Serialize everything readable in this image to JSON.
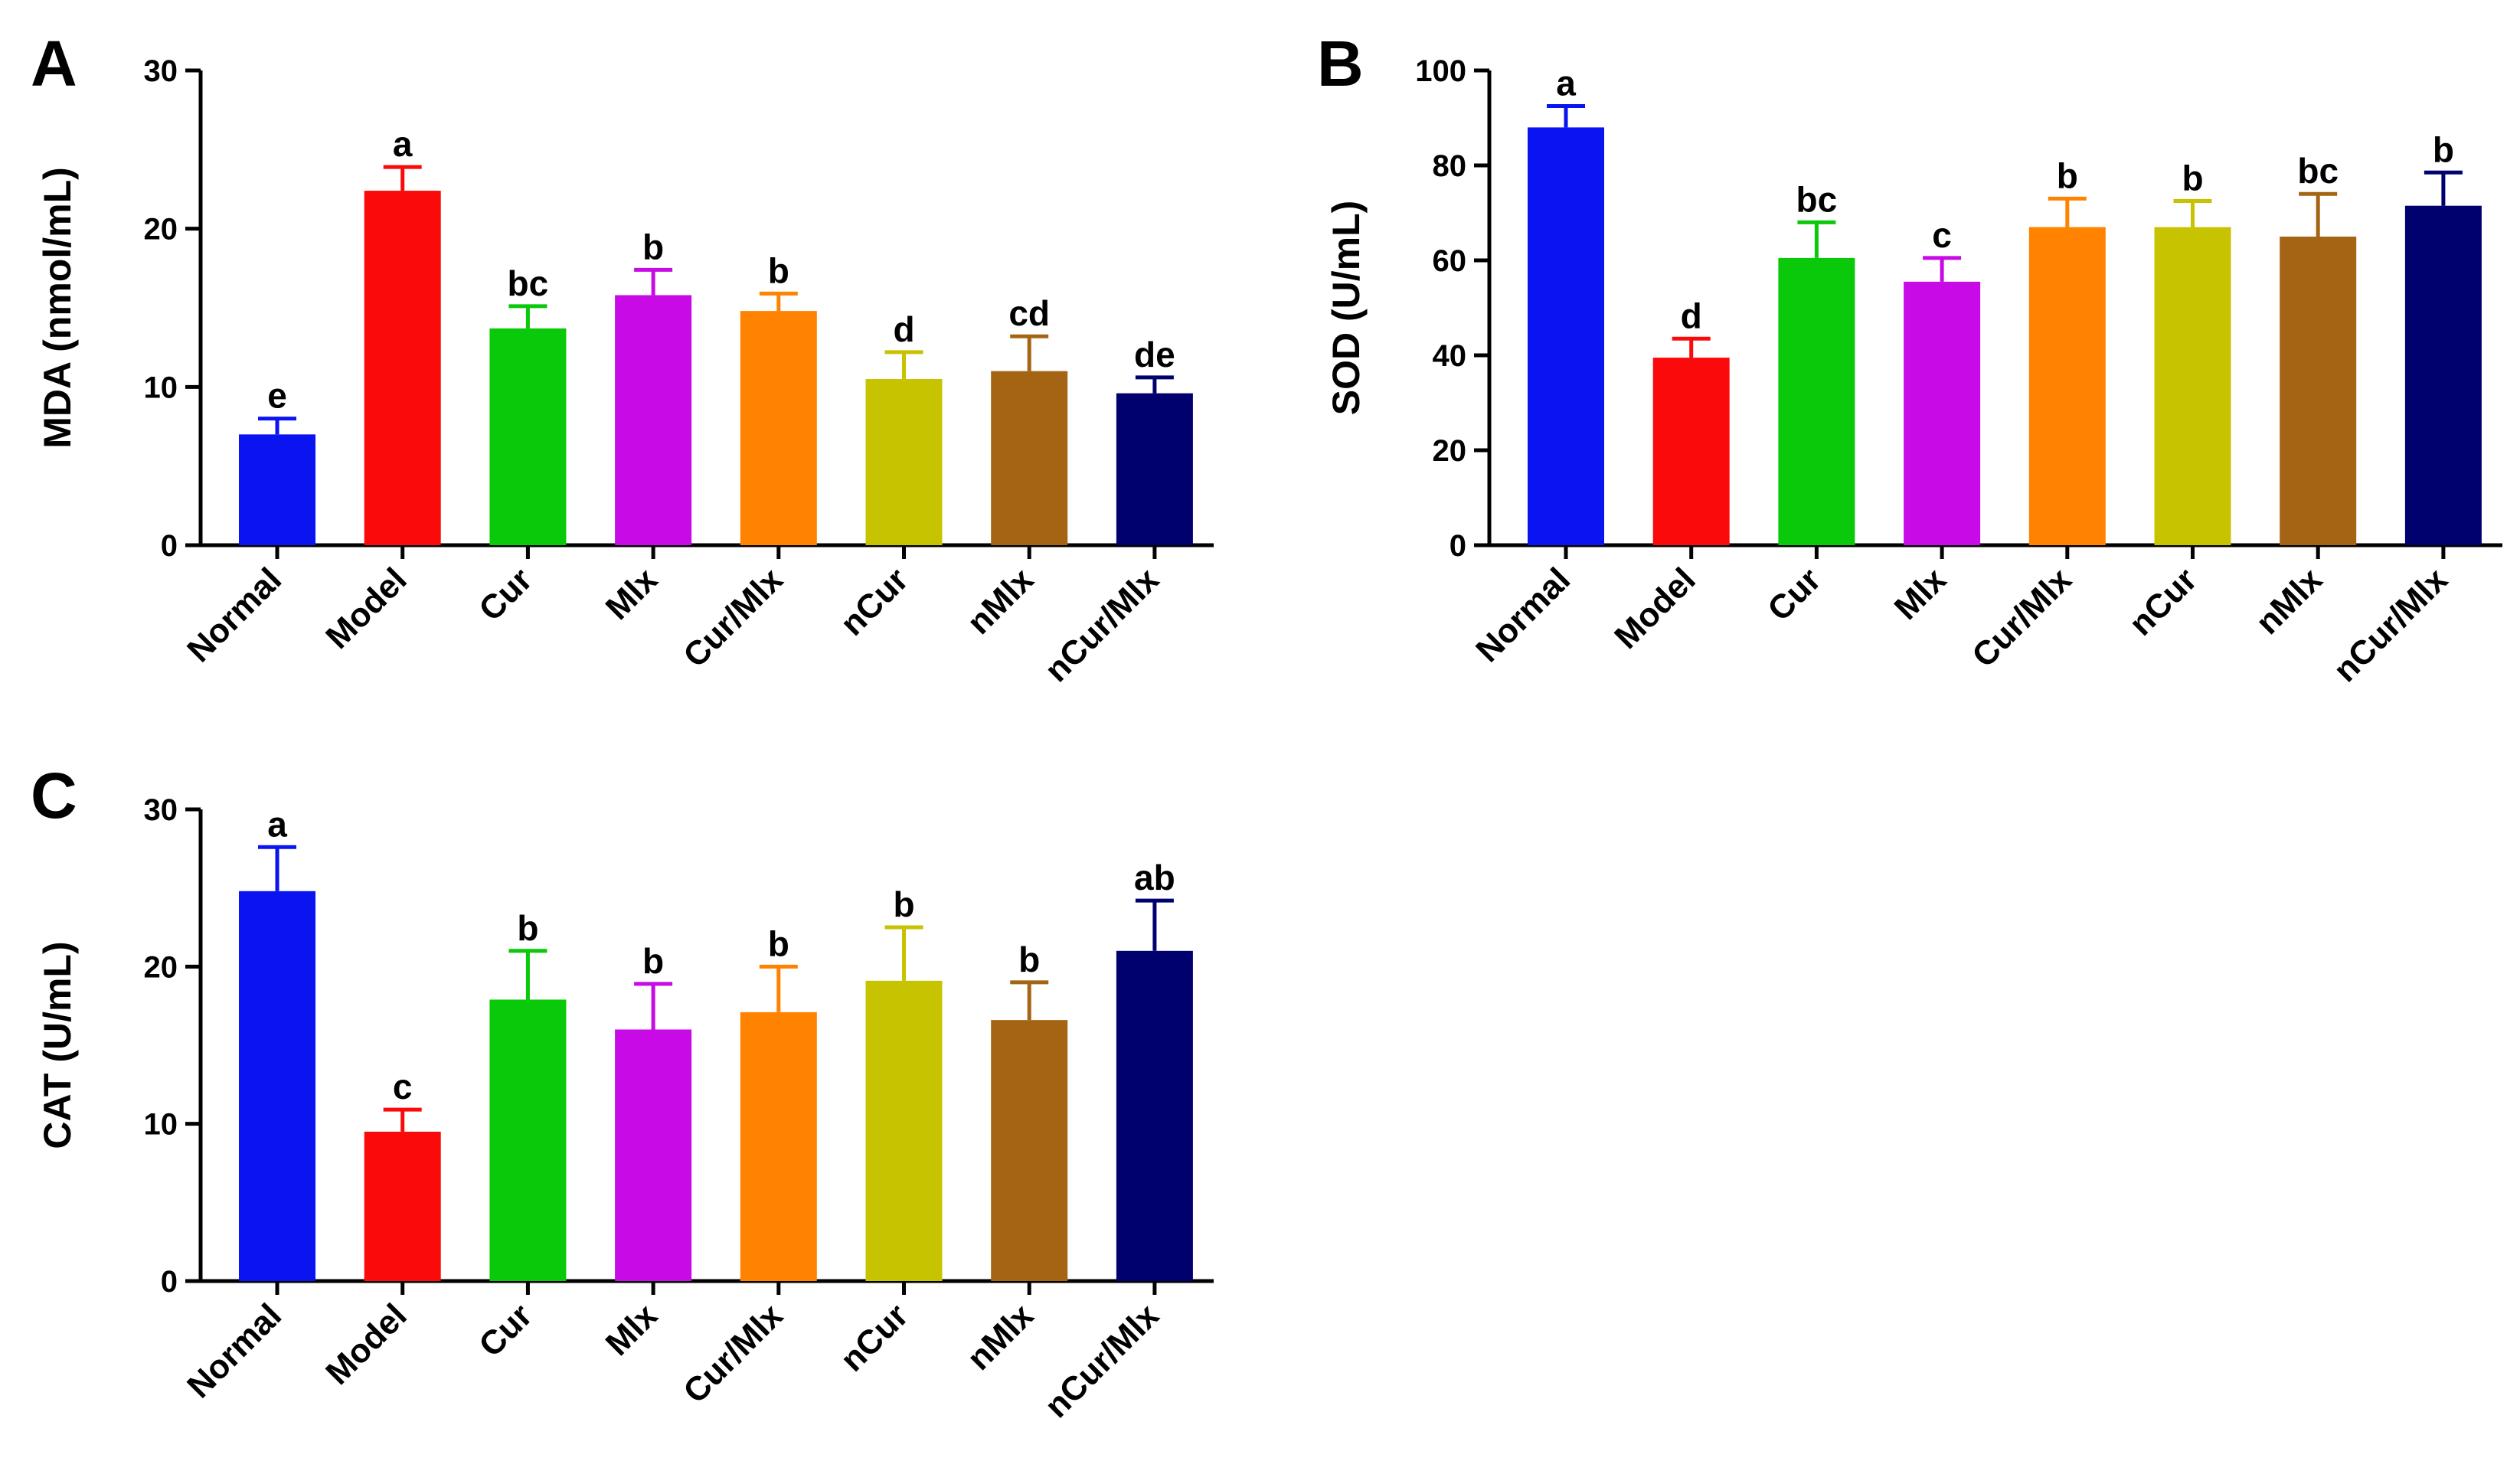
{
  "figure": {
    "background": "#ffffff"
  },
  "chart_data": [
    {
      "panel": "A",
      "type": "bar",
      "ylabel": "MDA (nmol/mL)",
      "ylim": [
        0,
        30
      ],
      "yticks": [
        "0",
        "10",
        "20",
        "30"
      ],
      "categories": [
        "Normal",
        "Model",
        "Cur",
        "Mlx",
        "Cur/Mlx",
        "nCur",
        "nMlx",
        "nCur/Mlx"
      ],
      "values": [
        7.0,
        22.4,
        13.7,
        15.8,
        14.8,
        10.5,
        11.0,
        9.6
      ],
      "errors": [
        1.0,
        1.5,
        1.4,
        1.6,
        1.1,
        1.7,
        2.2,
        1.0
      ],
      "significance": [
        "e",
        "a",
        "bc",
        "b",
        "b",
        "d",
        "cd",
        "de"
      ],
      "colors": [
        "#0a14f0",
        "#fa0a0a",
        "#0ac80a",
        "#c80ae6",
        "#ff8200",
        "#c8c300",
        "#a56414",
        "#00006e"
      ]
    },
    {
      "panel": "B",
      "type": "bar",
      "ylabel": "SOD (U/mL)",
      "ylim": [
        0,
        100
      ],
      "yticks": [
        "0",
        "20",
        "40",
        "60",
        "80",
        "100"
      ],
      "categories": [
        "Normal",
        "Model",
        "Cur",
        "Mlx",
        "Cur/Mlx",
        "nCur",
        "nMlx",
        "nCur/Mlx"
      ],
      "values": [
        88.0,
        39.5,
        60.5,
        55.5,
        67.0,
        67.0,
        65.0,
        71.5
      ],
      "errors": [
        4.5,
        4.0,
        7.5,
        5.0,
        6.0,
        5.5,
        9.0,
        7.0
      ],
      "significance": [
        "a",
        "d",
        "bc",
        "c",
        "b",
        "b",
        "bc",
        "b"
      ],
      "colors": [
        "#0a14f0",
        "#fa0a0a",
        "#0ac80a",
        "#c80ae6",
        "#ff8200",
        "#c8c300",
        "#a56414",
        "#00006e"
      ]
    },
    {
      "panel": "C",
      "type": "bar",
      "ylabel": "CAT (U/mL)",
      "ylim": [
        0,
        30
      ],
      "yticks": [
        "0",
        "10",
        "20",
        "30"
      ],
      "categories": [
        "Normal",
        "Model",
        "Cur",
        "Mlx",
        "Cur/Mlx",
        "nCur",
        "nMlx",
        "nCur/Mlx"
      ],
      "values": [
        24.8,
        9.5,
        17.9,
        16.0,
        17.1,
        19.1,
        16.6,
        21.0
      ],
      "errors": [
        2.8,
        1.4,
        3.1,
        2.9,
        2.9,
        3.4,
        2.4,
        3.2
      ],
      "significance": [
        "a",
        "c",
        "b",
        "b",
        "b",
        "b",
        "b",
        "ab"
      ],
      "colors": [
        "#0a14f0",
        "#fa0a0a",
        "#0ac80a",
        "#c80ae6",
        "#ff8200",
        "#c8c300",
        "#a56414",
        "#00006e"
      ]
    }
  ]
}
